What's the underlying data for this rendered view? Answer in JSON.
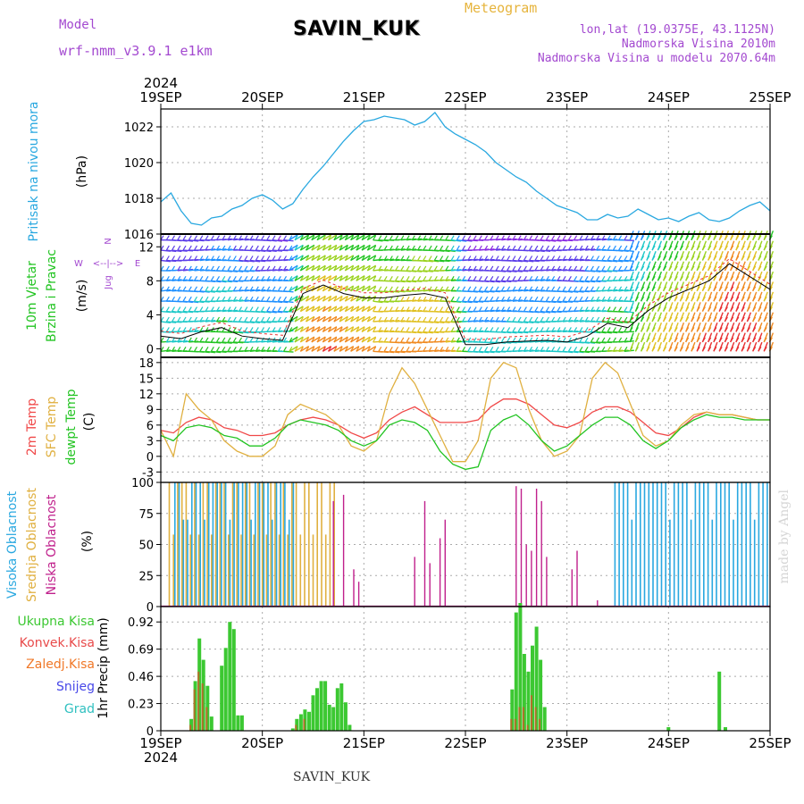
{
  "header": {
    "model_label": "Model",
    "model_name": "wrf-nmm_v3.9.1 e1km",
    "station": "SAVIN_KUK",
    "meteogram": "Meteogram",
    "lonlat": "lon,lat (19.0375E, 43.1125N)",
    "elevation": "Nadmorska Visina 2010m",
    "model_elevation": "Nadmorska Visina u modelu 2070.64m",
    "watermark": "made by Angel",
    "footer": "SAVIN_KUK"
  },
  "colors": {
    "pressure": "#29a8e0",
    "t2m": "#f04848",
    "sfc": "#e0b040",
    "dew": "#22c422",
    "high_cloud": "#2aa8e0",
    "mid_cloud": "#e0b040",
    "low_cloud": "#c0208c",
    "total_precip": "#3cc832",
    "conv_precip": "#e84a4a",
    "frozen_precip": "#f07828",
    "snow": "#4848e8",
    "grad": "#30c0c0"
  },
  "chart_data": [
    {
      "type": "line",
      "name": "pressure",
      "ylabel_lines": [
        "Pritisak na nivou mora",
        "(hPa)"
      ],
      "ylim": [
        1016,
        1023
      ],
      "yticks": [
        1016,
        1018,
        1020,
        1022
      ],
      "x_days": [
        0,
        0.1,
        0.2,
        0.3,
        0.4,
        0.5,
        0.6,
        0.7,
        0.8,
        0.9,
        1.0,
        1.1,
        1.2,
        1.3,
        1.4,
        1.5,
        1.6,
        1.7,
        1.8,
        1.9,
        2.0,
        2.1,
        2.2,
        2.3,
        2.4,
        2.5,
        2.6,
        2.7,
        2.8,
        2.9,
        3.0,
        3.1,
        3.2,
        3.3,
        3.4,
        3.5,
        3.6,
        3.7,
        3.8,
        3.9,
        4.0,
        4.1,
        4.2,
        4.3,
        4.4,
        4.5,
        4.6,
        4.7,
        4.8,
        4.9,
        5.0,
        5.1,
        5.2,
        5.3,
        5.4,
        5.5,
        5.6,
        5.7,
        5.8,
        5.9,
        6.0
      ],
      "values": [
        1017.8,
        1018.3,
        1017.3,
        1016.6,
        1016.5,
        1016.9,
        1017.0,
        1017.4,
        1017.6,
        1018.0,
        1018.2,
        1017.9,
        1017.4,
        1017.7,
        1018.5,
        1019.2,
        1019.8,
        1020.5,
        1021.2,
        1021.8,
        1022.3,
        1022.4,
        1022.6,
        1022.5,
        1022.4,
        1022.1,
        1022.3,
        1022.8,
        1022.0,
        1021.6,
        1021.3,
        1021.0,
        1020.6,
        1020.0,
        1019.6,
        1019.2,
        1018.9,
        1018.4,
        1018.0,
        1017.6,
        1017.4,
        1017.2,
        1016.8,
        1016.8,
        1017.1,
        1016.9,
        1017.0,
        1017.4,
        1017.1,
        1016.8,
        1016.9,
        1016.7,
        1017.0,
        1017.2,
        1016.8,
        1016.7,
        1016.9,
        1017.3,
        1017.6,
        1017.8,
        1017.3
      ]
    },
    {
      "type": "line",
      "name": "wind",
      "ylabel_lines": [
        "10m Vjetar",
        "Brzina i Pravac",
        "(m/s)"
      ],
      "direction_legend": [
        "N",
        "<--|-->",
        "E",
        "W",
        "Jug"
      ],
      "ylim": [
        -1,
        13.5
      ],
      "yticks": [
        0,
        4,
        8,
        12
      ],
      "x_days": [
        0,
        0.2,
        0.4,
        0.6,
        0.8,
        1.0,
        1.2,
        1.4,
        1.6,
        1.8,
        2.0,
        2.2,
        2.4,
        2.6,
        2.8,
        3.0,
        3.2,
        3.4,
        3.6,
        3.8,
        4.0,
        4.2,
        4.4,
        4.6,
        4.8,
        5.0,
        5.2,
        5.4,
        5.6,
        5.8,
        6.0
      ],
      "values": [
        1.5,
        1.2,
        2.0,
        2.5,
        1.5,
        1.2,
        1.0,
        6.5,
        7.5,
        6.5,
        6.0,
        6.0,
        6.3,
        6.5,
        6.0,
        0.5,
        0.5,
        0.8,
        0.9,
        1.0,
        0.8,
        1.5,
        3.0,
        2.5,
        4.5,
        6.0,
        7.0,
        8.0,
        10.0,
        8.5,
        7.0
      ]
    },
    {
      "type": "line",
      "name": "temperature",
      "ylabel_lines": [
        "2m Temp",
        "SFC Temp",
        "dewpt Temp",
        "(C)"
      ],
      "ylim": [
        -5,
        19
      ],
      "yticks": [
        -3,
        0,
        3,
        6,
        9,
        12,
        15,
        18
      ],
      "x_days": [
        0,
        0.125,
        0.25,
        0.375,
        0.5,
        0.625,
        0.75,
        0.875,
        1.0,
        1.125,
        1.25,
        1.375,
        1.5,
        1.625,
        1.75,
        1.875,
        2.0,
        2.125,
        2.25,
        2.375,
        2.5,
        2.625,
        2.75,
        2.875,
        3.0,
        3.125,
        3.25,
        3.375,
        3.5,
        3.625,
        3.75,
        3.875,
        4.0,
        4.125,
        4.25,
        4.375,
        4.5,
        4.625,
        4.75,
        4.875,
        5.0,
        5.125,
        5.25,
        5.375,
        5.5,
        5.625,
        5.75,
        5.875,
        6.0
      ],
      "series": [
        {
          "name": "2m Temp",
          "values": [
            5.0,
            4.5,
            6.5,
            7.5,
            7.0,
            5.5,
            5.0,
            4.0,
            4.0,
            4.5,
            6.0,
            7.0,
            7.5,
            7.0,
            6.0,
            4.5,
            3.5,
            4.5,
            7.0,
            8.5,
            9.5,
            8.0,
            6.5,
            6.5,
            6.5,
            7.0,
            9.5,
            11.0,
            11.0,
            10.0,
            8.0,
            6.0,
            5.5,
            6.5,
            8.5,
            9.5,
            9.5,
            8.5,
            6.5,
            4.5,
            4.0,
            5.5,
            7.5,
            8.5,
            8.0,
            8.0,
            7.5,
            7.0,
            7.0
          ]
        },
        {
          "name": "SFC Temp",
          "values": [
            5.0,
            0.0,
            12.0,
            9.0,
            7.0,
            3.0,
            1.0,
            0.0,
            0.0,
            2.0,
            8.0,
            10.0,
            9.0,
            8.0,
            6.0,
            2.0,
            1.0,
            3.0,
            12.0,
            17.0,
            14.0,
            9.0,
            4.0,
            -1.0,
            -1.0,
            3.0,
            15.0,
            18.0,
            17.0,
            9.0,
            3.0,
            0.0,
            1.0,
            4.0,
            15.0,
            18.0,
            16.0,
            10.0,
            4.0,
            2.0,
            3.0,
            6.0,
            8.0,
            8.5,
            8.0,
            8.0,
            7.5,
            7.0,
            7.0
          ]
        },
        {
          "name": "dewpt Temp",
          "values": [
            4.0,
            3.0,
            5.5,
            6.0,
            5.5,
            4.0,
            3.5,
            2.0,
            2.0,
            3.5,
            6.0,
            7.0,
            6.5,
            6.0,
            5.0,
            3.0,
            2.0,
            3.0,
            6.0,
            7.0,
            6.5,
            5.0,
            1.0,
            -1.5,
            -2.5,
            -2.0,
            5.0,
            7.0,
            8.0,
            6.0,
            3.0,
            1.0,
            2.0,
            4.0,
            6.0,
            7.5,
            7.5,
            6.0,
            3.0,
            1.5,
            3.0,
            5.5,
            7.0,
            8.0,
            7.5,
            7.5,
            7.0,
            7.0,
            7.0
          ]
        }
      ]
    },
    {
      "type": "bar",
      "name": "cloud_cover",
      "ylabel_lines": [
        "Visoka Oblacnost",
        "Srednja Oblacnost",
        "Niska Oblacnost",
        "(%)"
      ],
      "ylim": [
        0,
        100
      ],
      "yticks": [
        0,
        25,
        50,
        75,
        100
      ],
      "series": [
        {
          "name": "Visoka Oblacnost",
          "ranges": [
            [
              0.1,
              1.3
            ],
            [
              4.45,
              6.0
            ]
          ]
        },
        {
          "name": "Srednja Oblacnost",
          "ranges": [
            [
              0.05,
              1.75
            ]
          ]
        },
        {
          "name": "Niska Oblacnost",
          "x": [
            1.7,
            1.8,
            1.9,
            1.95,
            2.5,
            2.6,
            2.65,
            2.75,
            2.8,
            3.5,
            3.55,
            3.6,
            3.65,
            3.7,
            3.75,
            3.8,
            4.05,
            4.1,
            4.3
          ],
          "values": [
            85,
            90,
            30,
            20,
            40,
            85,
            35,
            55,
            70,
            97,
            95,
            50,
            45,
            95,
            85,
            40,
            30,
            45,
            5
          ]
        }
      ]
    },
    {
      "type": "bar",
      "name": "precipitation",
      "ylabel_lines": [
        "Ukupna Kisa",
        "Konvek.Kisa",
        "Zaledj.Kisa",
        "Snijeg",
        "Grad",
        "1hr Precip (mm)"
      ],
      "ylim": [
        0,
        1.05
      ],
      "yticks": [
        0,
        0.23,
        0.46,
        0.69,
        0.92
      ],
      "x_days": [
        0.3,
        0.34,
        0.38,
        0.42,
        0.46,
        0.5,
        0.6,
        0.64,
        0.68,
        0.72,
        0.76,
        0.8,
        1.3,
        1.34,
        1.38,
        1.42,
        1.46,
        1.5,
        1.54,
        1.58,
        1.62,
        1.66,
        1.7,
        1.74,
        1.78,
        1.82,
        1.86,
        3.46,
        3.5,
        3.54,
        3.58,
        3.62,
        3.66,
        3.7,
        3.74,
        3.78,
        5.0,
        5.5,
        5.56
      ],
      "values": [
        0.1,
        0.42,
        0.78,
        0.6,
        0.38,
        0.12,
        0.55,
        0.7,
        0.92,
        0.86,
        0.13,
        0.13,
        0.02,
        0.1,
        0.14,
        0.18,
        0.16,
        0.3,
        0.36,
        0.42,
        0.42,
        0.22,
        0.2,
        0.36,
        0.4,
        0.24,
        0.05,
        0.35,
        1.0,
        1.08,
        0.65,
        0.5,
        0.72,
        0.88,
        0.6,
        0.2,
        0.03,
        0.5,
        0.03
      ],
      "conv_values": [
        0.05,
        0.35,
        0.5,
        0.4,
        0.2,
        0.0,
        0.0,
        0.0,
        0.0,
        0.0,
        0.0,
        0.0,
        0.0,
        0.05,
        0.0,
        0.1,
        0.0,
        0.0,
        0.0,
        0.0,
        0.0,
        0.0,
        0.0,
        0.0,
        0.0,
        0.0,
        0.0,
        0.1,
        0.1,
        0.2,
        0.2,
        0.05,
        0.3,
        0.2,
        0.1,
        0.0,
        0.0,
        0.0,
        0.0
      ]
    }
  ],
  "x_axis": {
    "year": "2024",
    "tick_labels": [
      "19SEP",
      "20SEP",
      "21SEP",
      "22SEP",
      "23SEP",
      "24SEP",
      "25SEP"
    ]
  }
}
